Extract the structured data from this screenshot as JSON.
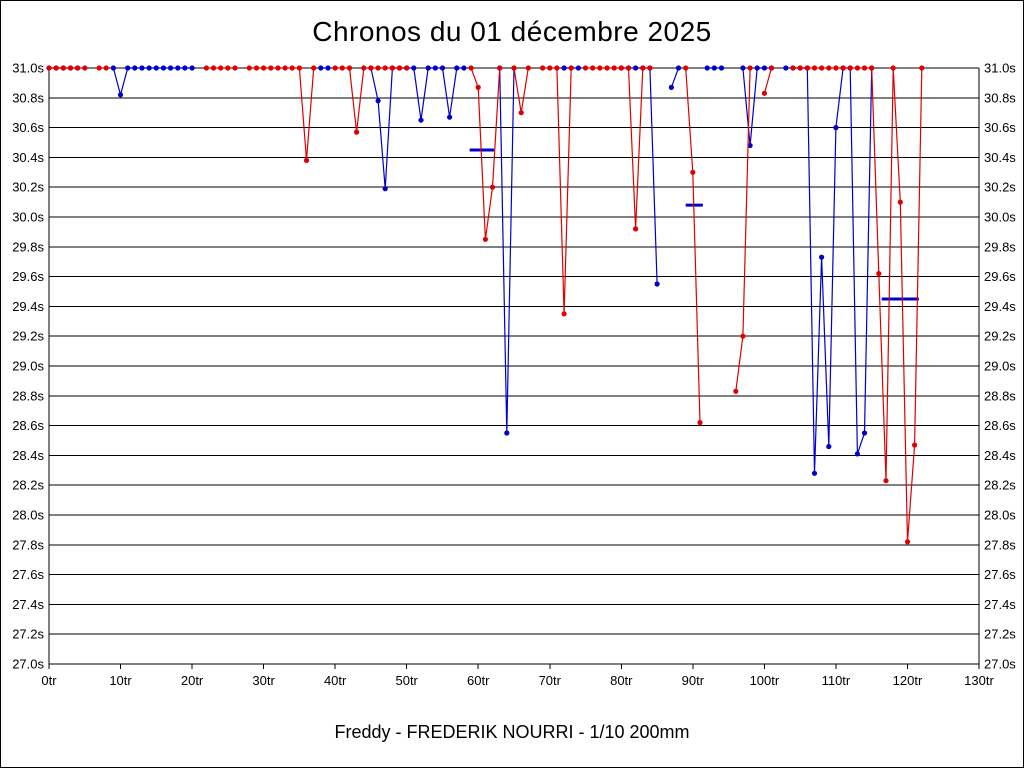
{
  "window": {
    "title": "Chronos du 01 décembre 2025",
    "footer": "Freddy - FREDERIK NOURRI - 1/10 200mm"
  },
  "colors": {
    "background": "#ffffff",
    "grid": "#000000",
    "text": "#000000",
    "series_red": "#e00000",
    "series_blue": "#0000cc"
  },
  "chart_data": {
    "type": "line",
    "title": "Chronos du 01 décembre 2025",
    "subtitle": "Freddy - FREDERIK NOURRI - 1/10 200mm",
    "x_unit": "tr",
    "y_unit": "s",
    "xlim": [
      0,
      130
    ],
    "ylim": [
      27.0,
      31.0
    ],
    "grid": "horizontal-only",
    "legend": "none",
    "gap_break": 1.6,
    "x_axis": {
      "values": [
        0,
        10,
        20,
        30,
        40,
        50,
        60,
        70,
        80,
        90,
        100,
        110,
        120,
        130
      ],
      "labels": [
        "0tr",
        "10tr",
        "20tr",
        "30tr",
        "40tr",
        "50tr",
        "60tr",
        "70tr",
        "80tr",
        "90tr",
        "100tr",
        "110tr",
        "120tr",
        "130tr"
      ]
    },
    "y_axis": {
      "values": [
        31,
        30.8,
        30.6,
        30.4,
        30.2,
        30,
        29.8,
        29.6,
        29.4,
        29.2,
        29,
        28.8,
        28.6,
        28.4,
        28.2,
        28,
        27.8,
        27.6,
        27.4,
        27.2,
        27
      ],
      "labels": [
        "31.0s",
        "30.8s",
        "30.6s",
        "30.4s",
        "30.2s",
        "30.0s",
        "29.8s",
        "29.6s",
        "29.4s",
        "29.2s",
        "29.0s",
        "28.8s",
        "28.6s",
        "28.4s",
        "28.2s",
        "28.0s",
        "27.8s",
        "27.6s",
        "27.4s",
        "27.2s",
        "27.0s"
      ]
    },
    "series": [
      {
        "name": "series-blue",
        "color": "#0000cc",
        "points": [
          [
            0,
            31
          ],
          [
            1,
            31
          ],
          [
            2,
            31
          ],
          [
            3,
            31
          ],
          [
            4,
            31
          ],
          [
            9,
            31
          ],
          [
            10,
            30.82
          ],
          [
            11,
            31
          ],
          [
            12,
            31
          ],
          [
            13,
            31
          ],
          [
            14,
            31
          ],
          [
            15,
            31
          ],
          [
            16,
            31
          ],
          [
            17,
            31
          ],
          [
            18,
            31
          ],
          [
            19,
            31
          ],
          [
            20,
            31
          ],
          [
            38,
            31
          ],
          [
            39,
            31
          ],
          [
            45,
            31
          ],
          [
            46,
            30.78
          ],
          [
            47,
            30.19
          ],
          [
            48,
            31
          ],
          [
            49,
            31
          ],
          [
            50,
            31
          ],
          [
            51,
            31
          ],
          [
            52,
            30.65
          ],
          [
            53,
            31
          ],
          [
            54,
            31
          ],
          [
            55,
            31
          ],
          [
            56,
            30.67
          ],
          [
            57,
            31
          ],
          [
            58,
            31
          ],
          [
            63,
            31
          ],
          [
            64,
            28.55
          ],
          [
            65,
            31
          ],
          [
            72,
            31
          ],
          [
            73,
            31
          ],
          [
            74,
            31
          ],
          [
            80,
            31
          ],
          [
            81,
            31
          ],
          [
            82,
            31
          ],
          [
            83,
            31
          ],
          [
            84,
            31
          ],
          [
            85,
            29.55
          ],
          [
            87,
            30.87
          ],
          [
            88,
            31
          ],
          [
            92,
            31
          ],
          [
            93,
            31
          ],
          [
            94,
            31
          ],
          [
            97,
            31
          ],
          [
            98,
            30.48
          ],
          [
            99,
            31
          ],
          [
            100,
            31
          ],
          [
            101,
            31
          ],
          [
            103,
            31
          ],
          [
            104,
            31
          ],
          [
            105,
            31
          ],
          [
            106,
            31
          ],
          [
            107,
            28.28
          ],
          [
            108,
            29.73
          ],
          [
            109,
            28.46
          ],
          [
            110,
            30.6
          ],
          [
            111,
            31
          ],
          [
            112,
            31
          ],
          [
            113,
            28.41
          ],
          [
            114,
            28.55
          ],
          [
            115,
            31
          ]
        ],
        "reference_segments": [
          {
            "x1": 58.8,
            "x2": 62.2,
            "y": 30.45
          },
          {
            "x1": 89.0,
            "x2": 91.4,
            "y": 30.08
          },
          {
            "x1": 116.4,
            "x2": 121.6,
            "y": 29.45
          }
        ]
      },
      {
        "name": "series-red",
        "color": "#e00000",
        "points": [
          [
            0,
            31
          ],
          [
            1,
            31
          ],
          [
            2,
            31
          ],
          [
            3,
            31
          ],
          [
            4,
            31
          ],
          [
            5,
            31
          ],
          [
            7,
            31
          ],
          [
            8,
            31
          ],
          [
            22,
            31
          ],
          [
            23,
            31
          ],
          [
            24,
            31
          ],
          [
            25,
            31
          ],
          [
            26,
            31
          ],
          [
            28,
            31
          ],
          [
            29,
            31
          ],
          [
            30,
            31
          ],
          [
            31,
            31
          ],
          [
            32,
            31
          ],
          [
            33,
            31
          ],
          [
            34,
            31
          ],
          [
            35,
            31
          ],
          [
            36,
            30.38
          ],
          [
            37,
            31
          ],
          [
            40,
            31
          ],
          [
            41,
            31
          ],
          [
            42,
            31
          ],
          [
            43,
            30.57
          ],
          [
            44,
            31
          ],
          [
            45,
            31
          ],
          [
            46,
            31
          ],
          [
            47,
            31
          ],
          [
            48,
            31
          ],
          [
            49,
            31
          ],
          [
            50,
            31
          ],
          [
            59,
            31
          ],
          [
            60,
            30.87
          ],
          [
            61,
            29.85
          ],
          [
            62,
            30.2
          ],
          [
            63,
            31
          ],
          [
            65,
            31
          ],
          [
            66,
            30.7
          ],
          [
            67,
            31
          ],
          [
            69,
            31
          ],
          [
            70,
            31
          ],
          [
            71,
            31
          ],
          [
            72,
            29.35
          ],
          [
            73,
            31
          ],
          [
            75,
            31
          ],
          [
            76,
            31
          ],
          [
            77,
            31
          ],
          [
            78,
            31
          ],
          [
            79,
            31
          ],
          [
            80,
            31
          ],
          [
            81,
            31
          ],
          [
            82,
            29.92
          ],
          [
            83,
            31
          ],
          [
            84,
            31
          ],
          [
            89,
            31
          ],
          [
            90,
            30.3
          ],
          [
            91,
            28.62
          ],
          [
            96,
            28.83
          ],
          [
            97,
            29.2
          ],
          [
            98,
            31
          ],
          [
            100,
            30.83
          ],
          [
            101,
            31
          ],
          [
            104,
            31
          ],
          [
            105,
            31
          ],
          [
            106,
            31
          ],
          [
            107,
            31
          ],
          [
            108,
            31
          ],
          [
            109,
            31
          ],
          [
            110,
            31
          ],
          [
            111,
            31
          ],
          [
            112,
            31
          ],
          [
            113,
            31
          ],
          [
            114,
            31
          ],
          [
            115,
            31
          ],
          [
            116,
            29.62
          ],
          [
            117,
            28.23
          ],
          [
            118,
            31
          ],
          [
            119,
            30.1
          ],
          [
            120,
            27.82
          ],
          [
            121,
            28.47
          ],
          [
            122,
            31
          ]
        ],
        "reference_segments": []
      }
    ]
  }
}
